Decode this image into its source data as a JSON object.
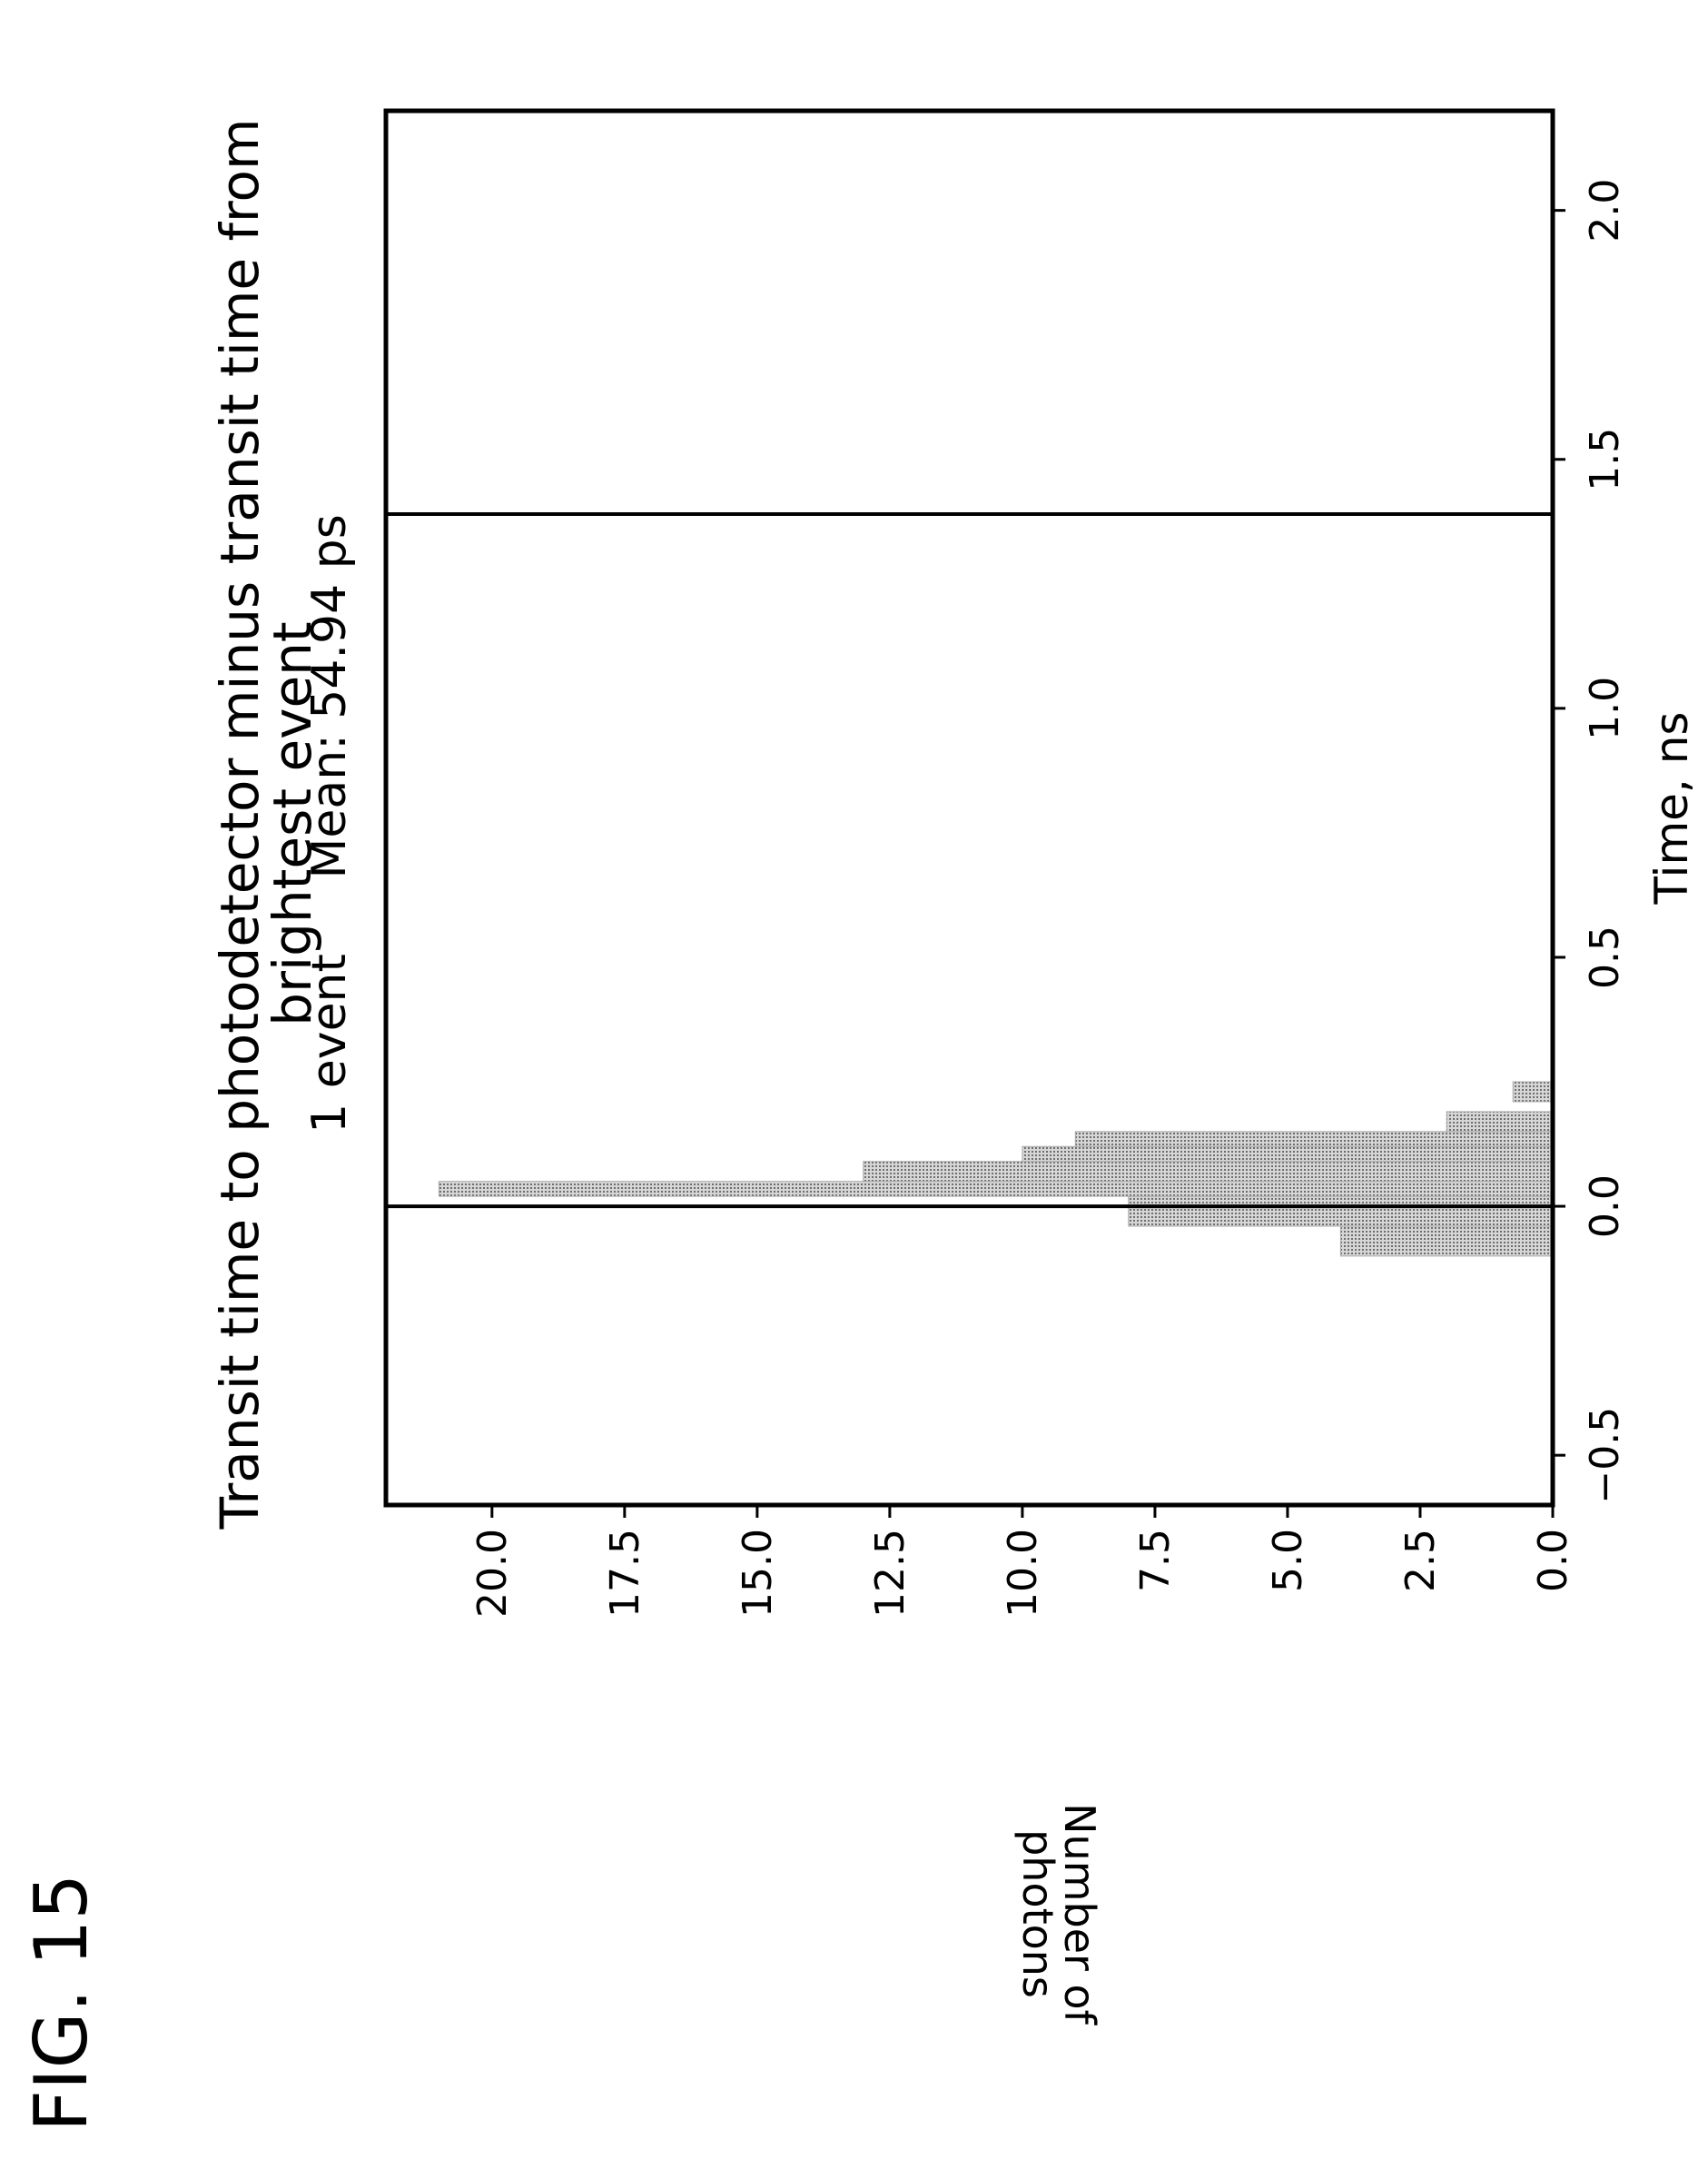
{
  "figure_label": "FIG. 15",
  "chart_data": {
    "type": "bar",
    "title": "Transit time to photodetector minus transit time from brightest event",
    "subtitle_left": "1 event",
    "subtitle_right": "Mean: 54.94 ps",
    "xlabel": "Time, ns",
    "ylabel": "Number of photons",
    "xlim": [
      -0.6,
      2.2
    ],
    "ylim": [
      0,
      22
    ],
    "xticks": [
      -0.5,
      0.0,
      0.5,
      1.0,
      1.5,
      2.0
    ],
    "xtick_labels": [
      "−0.5",
      "0.0",
      "0.5",
      "1.0",
      "1.5",
      "2.0"
    ],
    "yticks": [
      0,
      2.5,
      5,
      7.5,
      10,
      12.5,
      15,
      17.5,
      20
    ],
    "ytick_labels": [
      "0.0",
      "2.5",
      "5.0",
      "7.5",
      "10.0",
      "12.5",
      "15.0",
      "17.5",
      "20.0"
    ],
    "vertical_lines": [
      0.0,
      1.39
    ],
    "bins": [
      {
        "x0": -0.1,
        "x1": -0.04,
        "value": 4
      },
      {
        "x0": -0.04,
        "x1": 0.02,
        "value": 8
      },
      {
        "x0": 0.02,
        "x1": 0.05,
        "value": 21
      },
      {
        "x0": 0.05,
        "x1": 0.09,
        "value": 13
      },
      {
        "x0": 0.09,
        "x1": 0.12,
        "value": 10
      },
      {
        "x0": 0.12,
        "x1": 0.15,
        "value": 9
      },
      {
        "x0": 0.15,
        "x1": 0.19,
        "value": 2
      },
      {
        "x0": 0.21,
        "x1": 0.25,
        "value": 0.75
      }
    ],
    "bar_color": "#aaaaaa",
    "grid": false,
    "legend": "none"
  }
}
